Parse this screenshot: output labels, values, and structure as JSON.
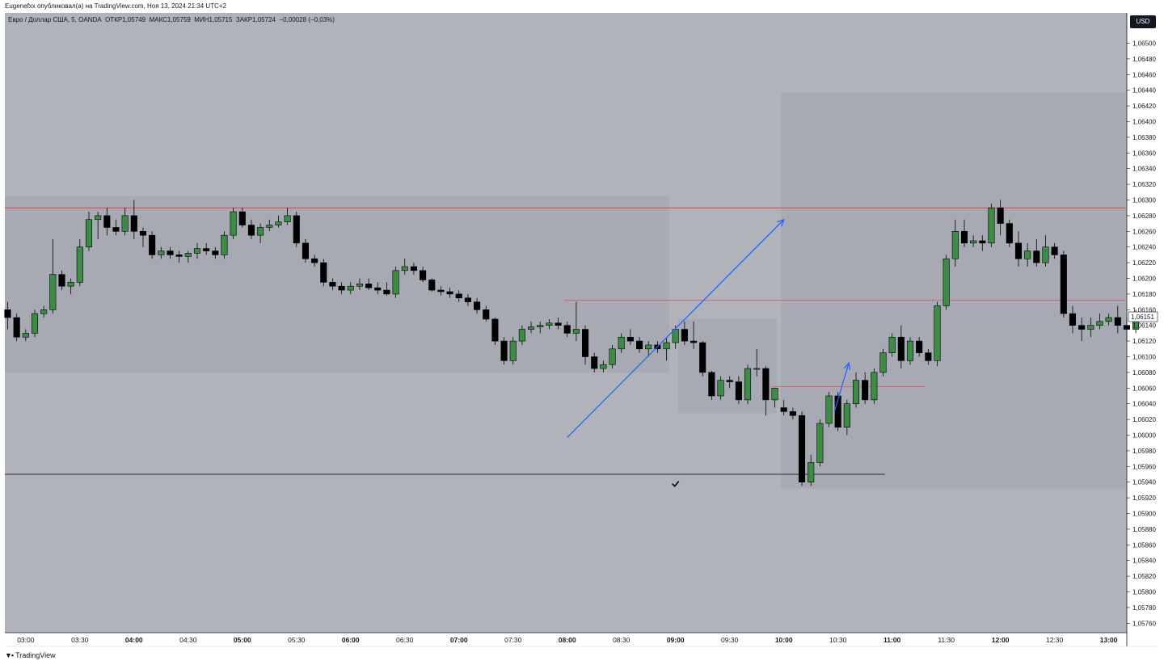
{
  "header": {
    "publisher_line": "Eugenefxx опубликовал(а) на TradingView.com, Ноя 13, 2024 21:34 UTC+2"
  },
  "legend": {
    "symbol": "Евро / Доллар США, 5, OANDA",
    "open_label": "ОТКР",
    "open": "1,05749",
    "high_label": "МАКС",
    "high": "1,05759",
    "low_label": "МИН",
    "low": "1,05715",
    "close_label": "ЗАКР",
    "close": "1,05724",
    "change": "−0,00028 (−0,03%)"
  },
  "currency_button": "USD",
  "footer": {
    "logo_text": "TradingView"
  },
  "colors": {
    "background": "#b1b3bb",
    "zone": "#a6a8b1",
    "bull": "#3c8c45",
    "bear": "#000000",
    "red_line": "#e8404a",
    "arrow": "#2962ff"
  },
  "chart_data": {
    "type": "candlestick",
    "symbol": "EURUSD, 5m, OANDA",
    "ylim": [
      1.0576,
      1.0651
    ],
    "y_ticks": [
      "1,06500",
      "1,06480",
      "1,06460",
      "1,06440",
      "1,06420",
      "1,06400",
      "1,06380",
      "1,06360",
      "1,06340",
      "1,06320",
      "1,06300",
      "1,06280",
      "1,06260",
      "1,06240",
      "1,06220",
      "1,06200",
      "1,06180",
      "1,06160",
      "1,06140",
      "1,06120",
      "1,06100",
      "1,06080",
      "1,06060",
      "1,06040",
      "1,06020",
      "1,06000",
      "1,05980",
      "1,05960",
      "1,05940",
      "1,05920",
      "1,05900",
      "1,05880",
      "1,05860",
      "1,05840",
      "1,05820",
      "1,05800",
      "1,05780",
      "1,05760"
    ],
    "x_ticks": [
      {
        "label": "03:00",
        "bold": false,
        "bar": 2
      },
      {
        "label": "03:30",
        "bold": false,
        "bar": 8
      },
      {
        "label": "04:00",
        "bold": true,
        "bar": 14
      },
      {
        "label": "04:30",
        "bold": false,
        "bar": 20
      },
      {
        "label": "05:00",
        "bold": true,
        "bar": 26
      },
      {
        "label": "05:30",
        "bold": false,
        "bar": 32
      },
      {
        "label": "06:00",
        "bold": true,
        "bar": 38
      },
      {
        "label": "06:30",
        "bold": false,
        "bar": 44
      },
      {
        "label": "07:00",
        "bold": true,
        "bar": 50
      },
      {
        "label": "07:30",
        "bold": false,
        "bar": 56
      },
      {
        "label": "08:00",
        "bold": true,
        "bar": 62
      },
      {
        "label": "08:30",
        "bold": false,
        "bar": 68
      },
      {
        "label": "09:00",
        "bold": true,
        "bar": 74
      },
      {
        "label": "09:30",
        "bold": false,
        "bar": 80
      },
      {
        "label": "10:00",
        "bold": true,
        "bar": 86
      },
      {
        "label": "10:30",
        "bold": false,
        "bar": 92
      },
      {
        "label": "11:00",
        "bold": true,
        "bar": 98
      },
      {
        "label": "11:30",
        "bold": false,
        "bar": 104
      },
      {
        "label": "12:00",
        "bold": true,
        "bar": 110
      },
      {
        "label": "12:30",
        "bold": false,
        "bar": 116
      },
      {
        "label": "13:00",
        "bold": true,
        "bar": 122
      }
    ],
    "current_price_label": "1,06151",
    "candles": [
      [
        1.0616,
        1.0617,
        1.06135,
        1.0615
      ],
      [
        1.0615,
        1.06155,
        1.0612,
        1.06125
      ],
      [
        1.06125,
        1.06135,
        1.0612,
        1.0613
      ],
      [
        1.0613,
        1.0616,
        1.06125,
        1.06155
      ],
      [
        1.06155,
        1.06165,
        1.0615,
        1.0616
      ],
      [
        1.0616,
        1.0625,
        1.06155,
        1.06205
      ],
      [
        1.06205,
        1.0621,
        1.06185,
        1.0619
      ],
      [
        1.0619,
        1.062,
        1.0618,
        1.06195
      ],
      [
        1.06195,
        1.0625,
        1.0619,
        1.0624
      ],
      [
        1.0624,
        1.06285,
        1.06235,
        1.06275
      ],
      [
        1.06275,
        1.06285,
        1.0625,
        1.0628
      ],
      [
        1.0628,
        1.0629,
        1.06255,
        1.06265
      ],
      [
        1.06265,
        1.06275,
        1.06255,
        1.0626
      ],
      [
        1.0626,
        1.0629,
        1.06255,
        1.0628
      ],
      [
        1.0628,
        1.063,
        1.0625,
        1.0626
      ],
      [
        1.0626,
        1.06265,
        1.0624,
        1.06255
      ],
      [
        1.06255,
        1.0626,
        1.06225,
        1.0623
      ],
      [
        1.0623,
        1.0624,
        1.06225,
        1.06235
      ],
      [
        1.06235,
        1.0624,
        1.06225,
        1.0623
      ],
      [
        1.0623,
        1.06235,
        1.0622,
        1.06228
      ],
      [
        1.06228,
        1.06235,
        1.0622,
        1.06232
      ],
      [
        1.06232,
        1.06245,
        1.06225,
        1.06238
      ],
      [
        1.06238,
        1.06245,
        1.0623,
        1.06235
      ],
      [
        1.06235,
        1.0624,
        1.06225,
        1.0623
      ],
      [
        1.0623,
        1.0626,
        1.06225,
        1.06255
      ],
      [
        1.06255,
        1.0629,
        1.0625,
        1.06285
      ],
      [
        1.06285,
        1.0629,
        1.06265,
        1.06268
      ],
      [
        1.06268,
        1.06275,
        1.0625,
        1.06255
      ],
      [
        1.06255,
        1.0627,
        1.06245,
        1.06265
      ],
      [
        1.06265,
        1.06275,
        1.0626,
        1.06268
      ],
      [
        1.06268,
        1.0628,
        1.06265,
        1.06272
      ],
      [
        1.06272,
        1.0629,
        1.06268,
        1.0628
      ],
      [
        1.0628,
        1.06285,
        1.0624,
        1.06245
      ],
      [
        1.06245,
        1.0625,
        1.0622,
        1.06225
      ],
      [
        1.06225,
        1.0623,
        1.06215,
        1.0622
      ],
      [
        1.0622,
        1.06225,
        1.0619,
        1.06195
      ],
      [
        1.06195,
        1.062,
        1.06185,
        1.0619
      ],
      [
        1.0619,
        1.06195,
        1.0618,
        1.06185
      ],
      [
        1.06185,
        1.06195,
        1.0618,
        1.0619
      ],
      [
        1.0619,
        1.062,
        1.06185,
        1.06193
      ],
      [
        1.06193,
        1.062,
        1.06185,
        1.06188
      ],
      [
        1.06188,
        1.06195,
        1.0618,
        1.06185
      ],
      [
        1.06185,
        1.06195,
        1.06178,
        1.0618
      ],
      [
        1.0618,
        1.06215,
        1.06175,
        1.0621
      ],
      [
        1.0621,
        1.06225,
        1.06205,
        1.06215
      ],
      [
        1.06215,
        1.0622,
        1.06205,
        1.0621
      ],
      [
        1.0621,
        1.06215,
        1.06195,
        1.06198
      ],
      [
        1.06198,
        1.062,
        1.06183,
        1.06185
      ],
      [
        1.06185,
        1.0619,
        1.06178,
        1.06183
      ],
      [
        1.06183,
        1.06188,
        1.06175,
        1.0618
      ],
      [
        1.0618,
        1.06185,
        1.0617,
        1.06175
      ],
      [
        1.06175,
        1.0618,
        1.06165,
        1.0617
      ],
      [
        1.0617,
        1.06175,
        1.06155,
        1.0616
      ],
      [
        1.0616,
        1.06165,
        1.06145,
        1.06148
      ],
      [
        1.06148,
        1.0615,
        1.06115,
        1.0612
      ],
      [
        1.0612,
        1.06125,
        1.0609,
        1.06095
      ],
      [
        1.06095,
        1.06125,
        1.0609,
        1.0612
      ],
      [
        1.0612,
        1.0614,
        1.06115,
        1.06135
      ],
      [
        1.06135,
        1.06145,
        1.0613,
        1.06138
      ],
      [
        1.06138,
        1.06145,
        1.0613,
        1.0614
      ],
      [
        1.0614,
        1.06148,
        1.06135,
        1.06143
      ],
      [
        1.06143,
        1.0615,
        1.06135,
        1.0614
      ],
      [
        1.0614,
        1.06145,
        1.06125,
        1.0613
      ],
      [
        1.0613,
        1.0617,
        1.0612,
        1.06135
      ],
      [
        1.06135,
        1.0614,
        1.0609,
        1.061
      ],
      [
        1.061,
        1.06105,
        1.0608,
        1.06085
      ],
      [
        1.06085,
        1.06095,
        1.0608,
        1.0609
      ],
      [
        1.0609,
        1.06115,
        1.06085,
        1.0611
      ],
      [
        1.0611,
        1.0613,
        1.06105,
        1.06125
      ],
      [
        1.06125,
        1.06135,
        1.06115,
        1.0612
      ],
      [
        1.0612,
        1.06125,
        1.06105,
        1.0611
      ],
      [
        1.0611,
        1.0612,
        1.061,
        1.06115
      ],
      [
        1.06115,
        1.0612,
        1.06105,
        1.0611
      ],
      [
        1.0611,
        1.06125,
        1.06095,
        1.06118
      ],
      [
        1.06118,
        1.0614,
        1.0611,
        1.06135
      ],
      [
        1.06135,
        1.06145,
        1.06115,
        1.0612
      ],
      [
        1.0612,
        1.06145,
        1.0611,
        1.06118
      ],
      [
        1.06118,
        1.0612,
        1.06075,
        1.0608
      ],
      [
        1.0608,
        1.06082,
        1.06045,
        1.0605
      ],
      [
        1.0605,
        1.06075,
        1.06045,
        1.0607
      ],
      [
        1.0607,
        1.06075,
        1.0606,
        1.06068
      ],
      [
        1.06068,
        1.06075,
        1.0604,
        1.06045
      ],
      [
        1.06045,
        1.0609,
        1.0604,
        1.06085
      ],
      [
        1.06085,
        1.0611,
        1.06075,
        1.06085
      ],
      [
        1.06085,
        1.06088,
        1.06025,
        1.06045
      ],
      [
        1.06045,
        1.0606,
        1.06035,
        1.0606
      ],
      [
        1.06035,
        1.06045,
        1.06025,
        1.0603
      ],
      [
        1.0603,
        1.06035,
        1.0602,
        1.06025
      ],
      [
        1.06025,
        1.0603,
        1.05935,
        1.0594
      ],
      [
        1.0594,
        1.05975,
        1.05935,
        1.05965
      ],
      [
        1.05965,
        1.0602,
        1.0596,
        1.06015
      ],
      [
        1.06015,
        1.06055,
        1.0601,
        1.0605
      ],
      [
        1.0605,
        1.06055,
        1.06005,
        1.0601
      ],
      [
        1.0601,
        1.06045,
        1.06,
        1.0604
      ],
      [
        1.0604,
        1.0608,
        1.06035,
        1.0607
      ],
      [
        1.0607,
        1.0608,
        1.0604,
        1.06045
      ],
      [
        1.06045,
        1.06085,
        1.0604,
        1.0608
      ],
      [
        1.0608,
        1.0611,
        1.06075,
        1.06105
      ],
      [
        1.06105,
        1.0613,
        1.061,
        1.06125
      ],
      [
        1.06125,
        1.0614,
        1.06085,
        1.06095
      ],
      [
        1.06095,
        1.06125,
        1.0609,
        1.0612
      ],
      [
        1.0612,
        1.06125,
        1.061,
        1.06105
      ],
      [
        1.06105,
        1.0611,
        1.0609,
        1.06095
      ],
      [
        1.06095,
        1.0617,
        1.06088,
        1.06165
      ],
      [
        1.06165,
        1.0623,
        1.0616,
        1.06225
      ],
      [
        1.06225,
        1.06275,
        1.06215,
        1.0626
      ],
      [
        1.0626,
        1.06275,
        1.0624,
        1.06245
      ],
      [
        1.06245,
        1.06255,
        1.0624,
        1.06248
      ],
      [
        1.06248,
        1.06255,
        1.06235,
        1.06245
      ],
      [
        1.06245,
        1.06295,
        1.0624,
        1.0629
      ],
      [
        1.0629,
        1.063,
        1.06255,
        1.0627
      ],
      [
        1.0627,
        1.06275,
        1.0624,
        1.06245
      ],
      [
        1.06245,
        1.0626,
        1.06215,
        1.06225
      ],
      [
        1.06225,
        1.06245,
        1.06215,
        1.06235
      ],
      [
        1.06235,
        1.0625,
        1.06215,
        1.0622
      ],
      [
        1.0622,
        1.06255,
        1.06215,
        1.0624
      ],
      [
        1.0624,
        1.06245,
        1.06225,
        1.0623
      ],
      [
        1.0623,
        1.06235,
        1.0615,
        1.06155
      ],
      [
        1.06155,
        1.06165,
        1.0613,
        1.0614
      ],
      [
        1.0614,
        1.0615,
        1.0612,
        1.06135
      ],
      [
        1.06135,
        1.0615,
        1.06125,
        1.0614
      ],
      [
        1.0614,
        1.06155,
        1.06135,
        1.06145
      ],
      [
        1.06145,
        1.06155,
        1.0614,
        1.0615
      ],
      [
        1.0615,
        1.06165,
        1.0613,
        1.0614
      ],
      [
        1.0614,
        1.0615,
        1.0612,
        1.06135
      ],
      [
        1.06135,
        1.0616,
        1.0613,
        1.06151
      ]
    ],
    "zones": [
      {
        "from_bar": 0,
        "to_bar": 73.6,
        "top": 1.06305,
        "bottom": 1.0608,
        "shade": "zone"
      },
      {
        "from_bar": 74.6,
        "to_bar": 85.5,
        "top": 1.06148,
        "bottom": 1.06028,
        "shade": "zone"
      },
      {
        "from_bar": 86.0,
        "to_bar": 124.2,
        "top": 1.06437,
        "bottom": 1.05932,
        "shade": "zone"
      }
    ],
    "hlines": [
      {
        "price": 1.0629,
        "from_bar": 0,
        "to_bar": 124.2,
        "color": "red_line",
        "width": 1
      },
      {
        "price": 1.06172,
        "from_bar": 62,
        "to_bar": 124.2,
        "color": "red_line",
        "width": 0.6
      },
      {
        "price": 1.06062,
        "from_bar": 85,
        "to_bar": 102,
        "color": "red_line",
        "width": 0.6
      },
      {
        "price": 1.0595,
        "from_bar": 0,
        "to_bar": 97.5,
        "color": "bear",
        "width": 0.8
      }
    ],
    "arrows": [
      {
        "from": [
          62.0,
          1.05997
        ],
        "to": [
          86.0,
          1.06275
        ]
      },
      {
        "from": [
          91.6,
          1.0603
        ],
        "to": [
          93.2,
          1.06092
        ]
      }
    ],
    "checkmark": {
      "bar": 74.0,
      "price": 1.05938
    }
  }
}
